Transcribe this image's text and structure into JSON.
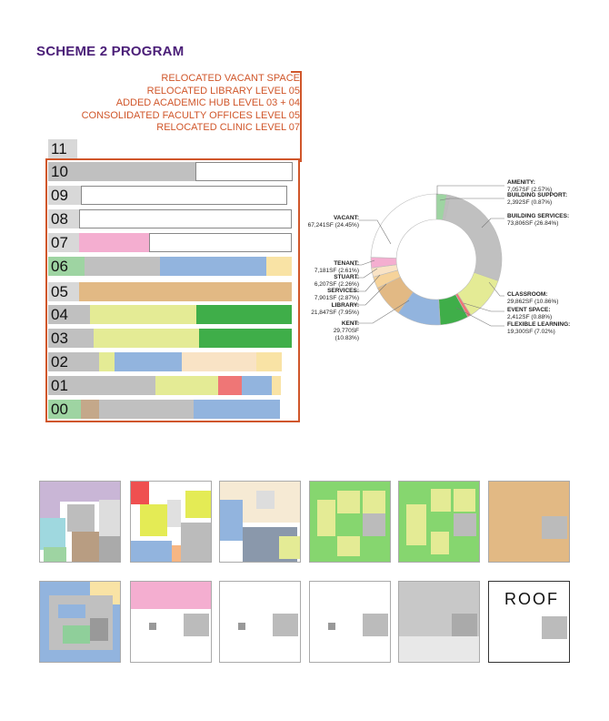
{
  "title": "SCHEME 2 PROGRAM",
  "notes": [
    "RELOCATED VACANT SPACE",
    "RELOCATED LIBRARY LEVEL 05",
    "ADDED ACADEMIC HUB LEVEL 03 + 04",
    "CONSOLIDATED FACULTY OFFICES LEVEL 05",
    "RELOCATED CLINIC LEVEL 07"
  ],
  "colors": {
    "vacant": "#c0c0c0",
    "library": "#92b4de",
    "classroom": "#e4eb95",
    "flexible": "#3fae49",
    "tenant": "#f4aed0",
    "services": "#e2b984",
    "stuart": "#f9e3c5",
    "kent": "#92b4de",
    "event": "#ef7676",
    "amenity": "#9ed4a2",
    "accent": "#d0562a",
    "title": "#4b1f78"
  },
  "floors": [
    {
      "label": "11"
    },
    {
      "label": "10"
    },
    {
      "label": "09"
    },
    {
      "label": "08"
    },
    {
      "label": "07"
    },
    {
      "label": "06"
    },
    {
      "label": "05"
    },
    {
      "label": "04"
    },
    {
      "label": "03"
    },
    {
      "label": "02"
    },
    {
      "label": "01"
    },
    {
      "label": "00"
    }
  ],
  "chart_data": {
    "type": "pie",
    "style": "donut",
    "slices": [
      {
        "name": "AMENITY",
        "value_sf": "7,057SF",
        "pct": "2.57%",
        "value": 7057,
        "color": "#9ed4a2"
      },
      {
        "name": "BUILDING SUPPORT",
        "value_sf": "2,392SF",
        "pct": "0.87%",
        "value": 2392,
        "color": "#bdbdbd"
      },
      {
        "name": "BUILDING SERVICES",
        "value_sf": "73,806SF",
        "pct": "26.84%",
        "value": 73806,
        "color": "#c0c0c0"
      },
      {
        "name": "CLASSROOM",
        "value_sf": "29,862SF",
        "pct": "10.86%",
        "value": 29862,
        "color": "#e4eb95"
      },
      {
        "name": "EVENT SPACE",
        "value_sf": "2,412SF",
        "pct": "0.88%",
        "value": 2412,
        "color": "#ef7676"
      },
      {
        "name": "FLEXIBLE LEARNING",
        "value_sf": "19,300SF",
        "pct": "7.02%",
        "value": 19300,
        "color": "#3fae49"
      },
      {
        "name": "KENT",
        "value_sf": "29,770SF",
        "pct": "10.83%",
        "value": 29770,
        "color": "#92b4de"
      },
      {
        "name": "LIBRARY",
        "value_sf": "21,847SF",
        "pct": "7.95%",
        "value": 21847,
        "color": "#e2b984"
      },
      {
        "name": "SERVICES",
        "value_sf": "7,901SF",
        "pct": "2.87%",
        "value": 7901,
        "color": "#f6d39a"
      },
      {
        "name": "STUART",
        "value_sf": "6,207SF",
        "pct": "2.26%",
        "value": 6207,
        "color": "#f9e3c5"
      },
      {
        "name": "TENANT",
        "value_sf": "7,181SF",
        "pct": "2.61%",
        "value": 7181,
        "color": "#f4aed0"
      },
      {
        "name": "VACANT",
        "value_sf": "67,241SF",
        "pct": "24.45%",
        "value": 67241,
        "color": "#ffffff"
      }
    ]
  },
  "roof_label": "ROOF"
}
